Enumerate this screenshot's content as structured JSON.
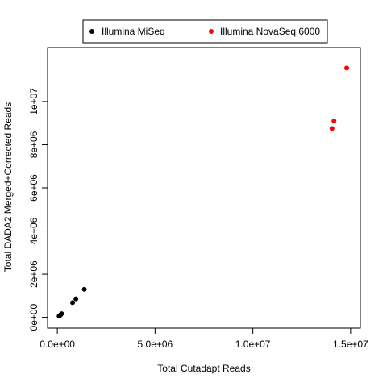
{
  "chart_data": {
    "type": "scatter",
    "xlabel": "Total Cutadapt Reads",
    "ylabel": "Total DADA2 Merged+Corrected Reads",
    "xlim": [
      -500000,
      15500000
    ],
    "ylim": [
      -500000,
      12500000
    ],
    "x_ticks": [
      0,
      5000000,
      10000000,
      15000000
    ],
    "x_tick_labels": [
      "0.0e+00",
      "5.0e+06",
      "1.0e+07",
      "1.5e+07"
    ],
    "y_ticks": [
      0,
      2000000,
      4000000,
      6000000,
      8000000,
      10000000
    ],
    "y_tick_labels": [
      "0e+00",
      "2e+06",
      "4e+06",
      "6e+06",
      "8e+06",
      "1e+07"
    ],
    "grid": false,
    "legend_position": "top",
    "series": [
      {
        "name": "Illumina MiSeq",
        "color": "#000000",
        "x": [
          90000,
          130000,
          170000,
          220000,
          780000,
          950000,
          1380000
        ],
        "y": [
          60000,
          90000,
          120000,
          170000,
          680000,
          860000,
          1300000
        ]
      },
      {
        "name": "Illumina NovaSeq 6000",
        "color": "#ff0000",
        "x": [
          14050000,
          14150000,
          14800000
        ],
        "y": [
          8750000,
          9100000,
          11550000
        ]
      }
    ]
  }
}
